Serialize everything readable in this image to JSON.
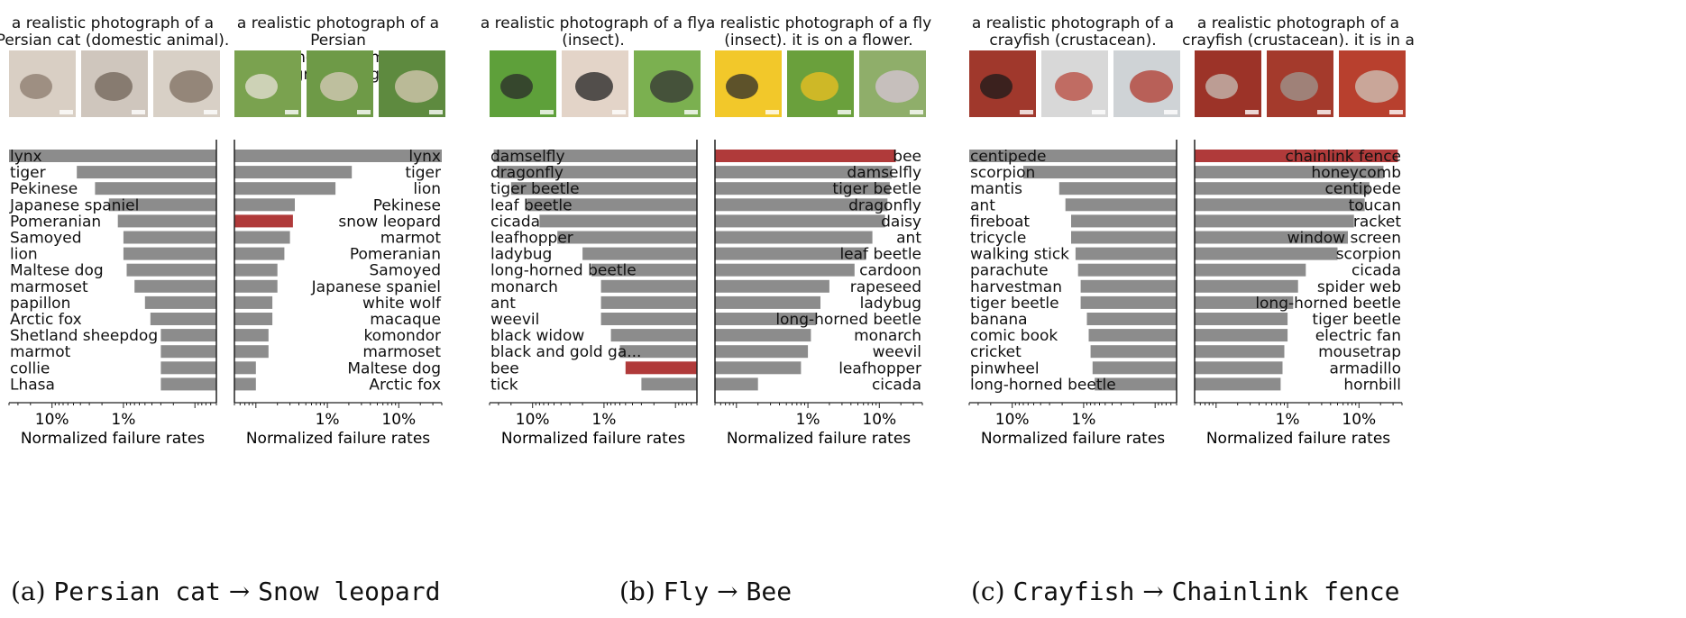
{
  "colors": {
    "bar": "#8c8c8c",
    "highlight": "#b03a3a",
    "axis": "#222222"
  },
  "panels": [
    {
      "id": "a",
      "subcaption": {
        "prefix": "(a) ",
        "source": "Persian cat",
        "arrow": " → ",
        "target": "Snow leopard"
      },
      "charts": [
        {
          "caption": "a realistic photograph of a\nPersian cat (domestic animal).",
          "images": [
            "cat-photo-1",
            "cat-photo-2",
            "cat-photo-3"
          ],
          "chart_data": {
            "type": "bar",
            "orientation": "horizontal",
            "direction": "reversed",
            "scale": "log",
            "xlabel": "Normalized failure rates",
            "xticks": [
              "10%",
              "1%"
            ],
            "xlim_percent": [
              0.05,
              40
            ],
            "categories": [
              "lynx",
              "tiger",
              "Pekinese",
              "Japanese spaniel",
              "Pomeranian",
              "Samoyed",
              "lion",
              "Maltese dog",
              "marmoset",
              "papillon",
              "Arctic fox",
              "Shetland sheepdog",
              "marmot",
              "collie",
              "Lhasa"
            ],
            "values_percent": [
              40,
              4.5,
              2.5,
              1.6,
              1.2,
              1.0,
              1.0,
              0.9,
              0.7,
              0.5,
              0.42,
              0.3,
              0.3,
              0.3,
              0.3
            ],
            "highlight": []
          }
        },
        {
          "caption": "a realistic photograph of a Persian\ncat (domestic animal). the\nbackground is green.",
          "images": [
            "cat-green-photo-1",
            "cat-green-photo-2",
            "cat-green-photo-3"
          ],
          "chart_data": {
            "type": "bar",
            "orientation": "horizontal",
            "direction": "normal",
            "scale": "log",
            "xlabel": "Normalized failure rates",
            "xticks": [
              "1%",
              "10%"
            ],
            "xlim_percent": [
              0.05,
              40
            ],
            "categories": [
              "lynx",
              "tiger",
              "lion",
              "Pekinese",
              "snow leopard",
              "marmot",
              "Pomeranian",
              "Samoyed",
              "Japanese spaniel",
              "white wolf",
              "macaque",
              "komondor",
              "marmoset",
              "Maltese dog",
              "Arctic fox"
            ],
            "values_percent": [
              40,
              2.2,
              1.3,
              0.35,
              0.33,
              0.3,
              0.25,
              0.2,
              0.2,
              0.17,
              0.17,
              0.15,
              0.15,
              0.1,
              0.1
            ],
            "highlight": [
              "snow leopard"
            ]
          }
        }
      ]
    },
    {
      "id": "b",
      "subcaption": {
        "prefix": "(b) ",
        "source": "Fly",
        "arrow": " → ",
        "target": "Bee"
      },
      "charts": [
        {
          "caption": "a realistic photograph of a fly\n(insect).",
          "images": [
            "fly-photo-1",
            "fly-photo-2",
            "fly-photo-3"
          ],
          "chart_data": {
            "type": "bar",
            "orientation": "horizontal",
            "direction": "reversed",
            "scale": "log",
            "xlabel": "Normalized failure rates",
            "xticks": [
              "10%",
              "1%"
            ],
            "xlim_percent": [
              0.05,
              40
            ],
            "categories": [
              "damselfly",
              "dragonfly",
              "tiger beetle",
              "leaf beetle",
              "cicada",
              "leafhopper",
              "ladybug",
              "long-horned beetle",
              "monarch",
              "ant",
              "weevil",
              "black widow",
              "black and gold ga...",
              "bee",
              "tick"
            ],
            "values_percent": [
              35,
              30,
              20,
              12,
              8,
              4.5,
              2,
              1.5,
              1.1,
              1.1,
              1.1,
              0.8,
              0.6,
              0.5,
              0.3
            ],
            "highlight": [
              "bee"
            ]
          }
        },
        {
          "caption": "a realistic photograph of a fly\n(insect). it is on a flower.",
          "images": [
            "fly-flower-photo-1",
            "fly-flower-photo-2",
            "fly-flower-photo-3"
          ],
          "chart_data": {
            "type": "bar",
            "orientation": "horizontal",
            "direction": "normal",
            "scale": "log",
            "xlabel": "Normalized failure rates",
            "xticks": [
              "1%",
              "10%"
            ],
            "xlim_percent": [
              0.05,
              40
            ],
            "categories": [
              "bee",
              "damselfly",
              "tiger beetle",
              "dragonfly",
              "daisy",
              "ant",
              "leaf beetle",
              "cardoon",
              "rapeseed",
              "ladybug",
              "long-horned beetle",
              "monarch",
              "weevil",
              "leafhopper",
              "cicada"
            ],
            "values_percent": [
              17,
              15,
              14,
              13,
              12,
              8,
              6.5,
              4.5,
              2,
              1.5,
              1.3,
              1.1,
              1.0,
              0.8,
              0.2
            ],
            "highlight": [
              "bee"
            ]
          }
        }
      ]
    },
    {
      "id": "c",
      "subcaption": {
        "prefix": "(c) ",
        "source": "Crayfish",
        "arrow": " → ",
        "target": "Chainlink fence"
      },
      "charts": [
        {
          "caption": "a realistic photograph of a\ncrayfish (crustacean).",
          "images": [
            "crayfish-photo-1",
            "crayfish-photo-2",
            "crayfish-photo-3"
          ],
          "chart_data": {
            "type": "bar",
            "orientation": "horizontal",
            "direction": "reversed",
            "scale": "log",
            "xlabel": "Normalized failure rates",
            "xticks": [
              "10%",
              "1%"
            ],
            "xlim_percent": [
              0.05,
              40
            ],
            "categories": [
              "centipede",
              "scorpion",
              "mantis",
              "ant",
              "fireboat",
              "tricycle",
              "walking stick",
              "parachute",
              "harvestman",
              "tiger beetle",
              "banana",
              "comic book",
              "cricket",
              "pinwheel",
              "long-horned beetle"
            ],
            "values_percent": [
              40,
              7,
              2.2,
              1.8,
              1.5,
              1.5,
              1.3,
              1.2,
              1.1,
              1.1,
              0.9,
              0.85,
              0.8,
              0.75,
              0.7
            ],
            "highlight": []
          }
        },
        {
          "caption": "a realistic photograph of a\ncrayfish (crustacean). it is in a net.",
          "images": [
            "crayfish-net-photo-1",
            "crayfish-net-photo-2",
            "crayfish-net-photo-3"
          ],
          "chart_data": {
            "type": "bar",
            "orientation": "horizontal",
            "direction": "normal",
            "scale": "log",
            "xlabel": "Normalized failure rates",
            "xticks": [
              "1%",
              "10%"
            ],
            "xlim_percent": [
              0.05,
              40
            ],
            "categories": [
              "chainlink fence",
              "honeycomb",
              "centipede",
              "toucan",
              "racket",
              "window screen",
              "scorpion",
              "cicada",
              "spider web",
              "long-horned beetle",
              "tiger beetle",
              "electric fan",
              "mousetrap",
              "armadillo",
              "hornbill"
            ],
            "values_percent": [
              35,
              22,
              14,
              12,
              8.5,
              7,
              5,
              1.8,
              1.4,
              1.2,
              1.0,
              1.0,
              0.9,
              0.85,
              0.8
            ],
            "highlight": [
              "chainlink fence"
            ]
          }
        }
      ]
    }
  ]
}
